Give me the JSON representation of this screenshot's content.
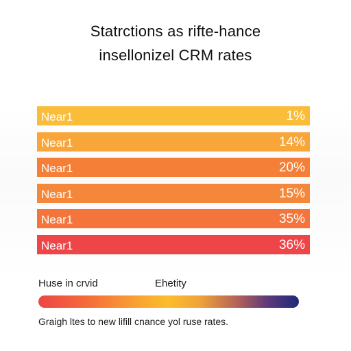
{
  "chart_data": {
    "type": "bar",
    "title": "Statrctions as rifte-hance",
    "subtitle": "insellonizel CRM rates",
    "categories": [
      "Near1",
      "Near1",
      "Near1",
      "Near1",
      "Near1",
      "Near1"
    ],
    "value_labels": [
      "1%",
      "14%",
      "20%",
      "15%",
      "35%",
      "36%"
    ],
    "values": [
      1,
      14,
      20,
      15,
      35,
      36
    ],
    "bar_colors": [
      "#f9bd3a",
      "#f8a63a",
      "#f57f36",
      "#f5873a",
      "#f4753b",
      "#ee4548"
    ],
    "grid": false,
    "legend": {
      "left_label": "Huse in crvid",
      "right_label": "Ehetity",
      "gradient_colors": [
        "#ef4545",
        "#fbbd2c",
        "#1e2a78"
      ]
    },
    "note": "Graigh ltes to new lifill cnance yol ruse rates."
  }
}
